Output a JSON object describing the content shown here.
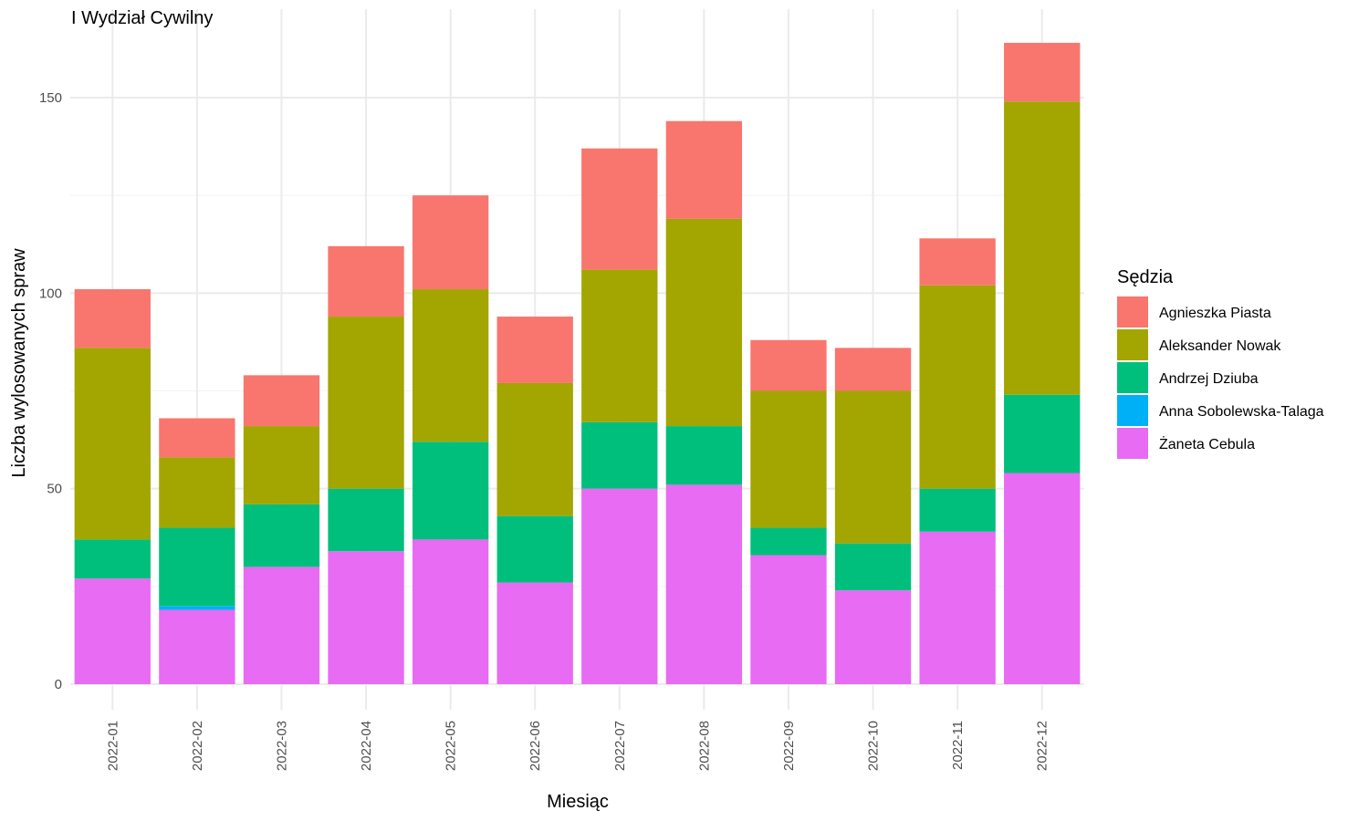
{
  "chart_data": {
    "type": "bar",
    "stacked": true,
    "title": "I Wydział Cywilny",
    "xlabel": "Miesiąc",
    "ylabel": "Liczba wylosowanych spraw",
    "ylim": [
      0,
      165
    ],
    "yticks": [
      0,
      50,
      100,
      150
    ],
    "grid": true,
    "legend_position": "right",
    "legend_title": "Sędzia",
    "categories": [
      "2022-01",
      "2022-02",
      "2022-03",
      "2022-04",
      "2022-05",
      "2022-06",
      "2022-07",
      "2022-08",
      "2022-09",
      "2022-10",
      "2022-11",
      "2022-12"
    ],
    "series": [
      {
        "name": "Żaneta Cebula",
        "color": "#E76BF3",
        "values": [
          27,
          19,
          30,
          34,
          37,
          26,
          50,
          51,
          33,
          24,
          39,
          54
        ]
      },
      {
        "name": "Anna Sobolewska-Talaga",
        "color": "#00B0F6",
        "values": [
          0,
          1,
          0,
          0,
          0,
          0,
          0,
          0,
          0,
          0,
          0,
          0
        ]
      },
      {
        "name": "Andrzej Dziuba",
        "color": "#00BF7D",
        "values": [
          10,
          20,
          16,
          16,
          25,
          17,
          17,
          15,
          7,
          12,
          11,
          20
        ]
      },
      {
        "name": "Aleksander Nowak",
        "color": "#A3A500",
        "values": [
          49,
          18,
          20,
          44,
          39,
          34,
          39,
          53,
          35,
          39,
          52,
          75
        ]
      },
      {
        "name": "Agnieszka Piasta",
        "color": "#F8766D",
        "values": [
          15,
          10,
          13,
          18,
          24,
          17,
          31,
          25,
          13,
          11,
          12,
          15
        ]
      }
    ],
    "legend_order": [
      "Agnieszka Piasta",
      "Aleksander Nowak",
      "Andrzej Dziuba",
      "Anna Sobolewska-Talaga",
      "Żaneta Cebula"
    ]
  }
}
